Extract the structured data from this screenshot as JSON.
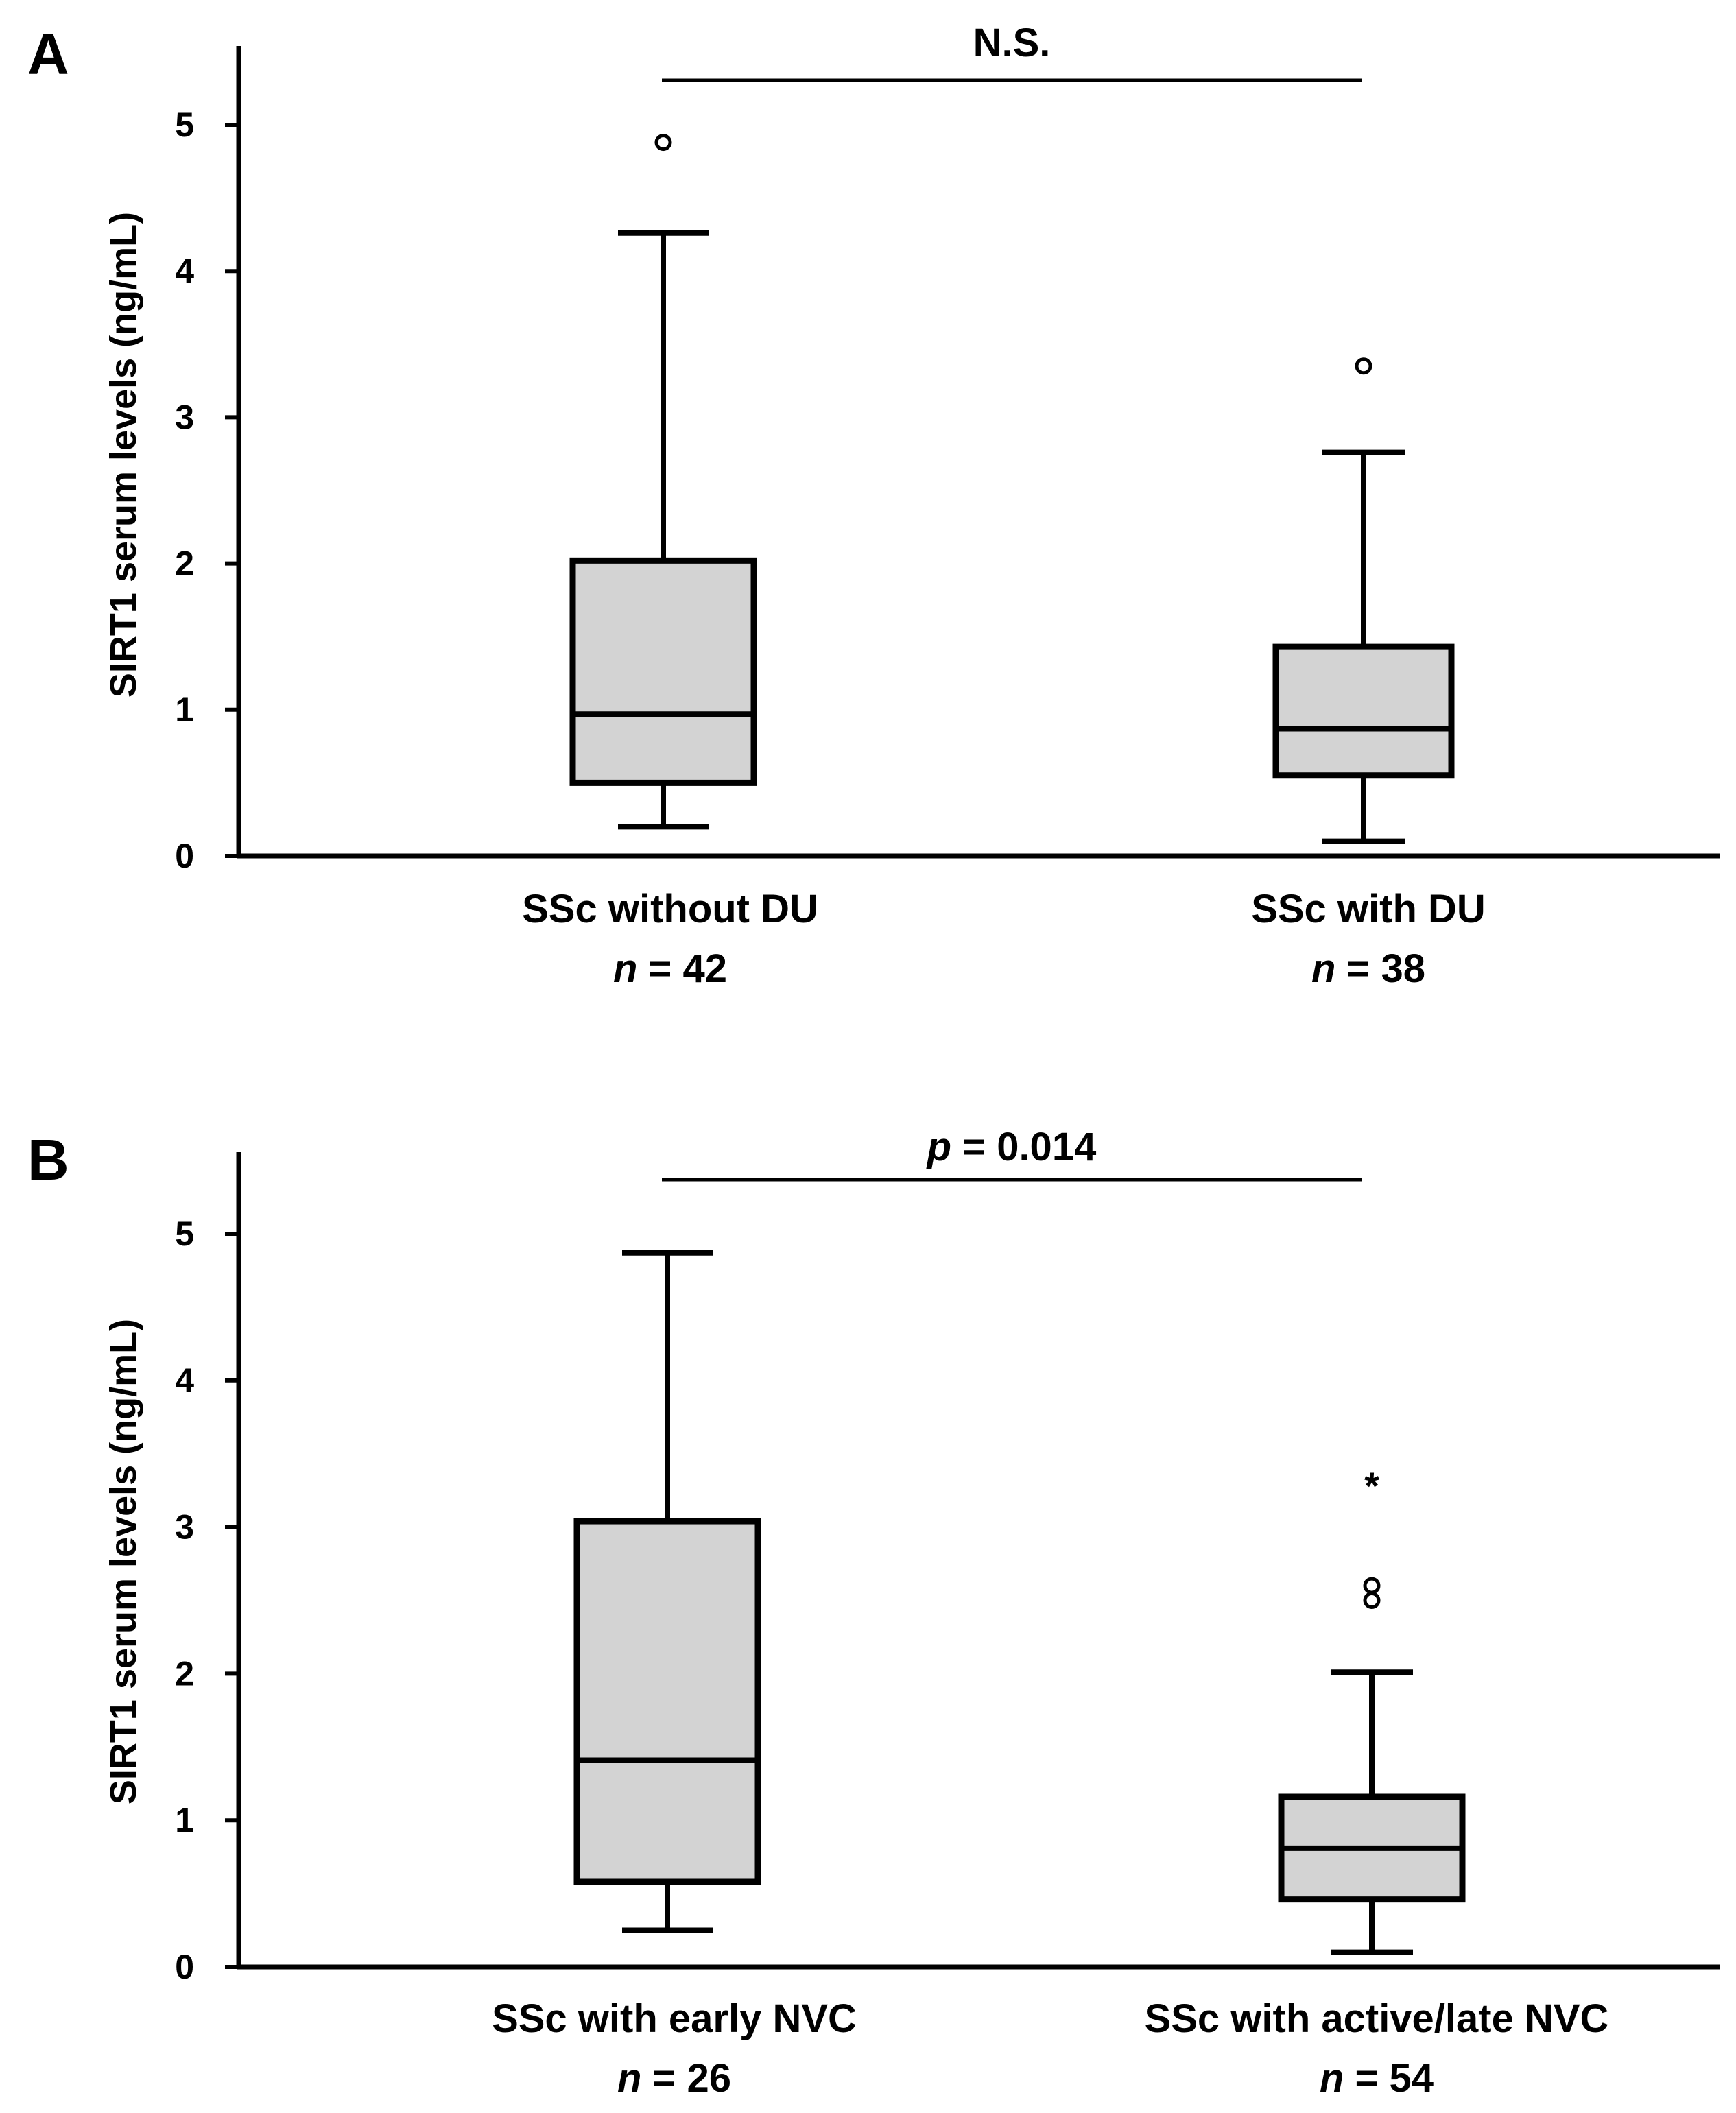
{
  "chart_data": [
    {
      "type": "boxplot",
      "panel": "A",
      "ylabel": "SIRT1 serum levels (ng/mL)",
      "ylim": [
        0,
        5.5
      ],
      "yticks": [
        0,
        1,
        2,
        3,
        4,
        5
      ],
      "significance": {
        "label": "N.S.",
        "prefix": "",
        "between": [
          0,
          1
        ]
      },
      "groups": [
        {
          "name": "SSc without DU",
          "n_label": "n",
          "n_value": "= 42",
          "min": 0.2,
          "q1": 0.5,
          "median": 0.97,
          "q3": 2.02,
          "max": 4.26,
          "outliers": [
            {
              "value": 4.88,
              "marker": "circle"
            }
          ]
        },
        {
          "name": "SSc with DU",
          "n_label": "n",
          "n_value": "= 38",
          "min": 0.1,
          "q1": 0.55,
          "median": 0.87,
          "q3": 1.43,
          "max": 2.76,
          "outliers": [
            {
              "value": 3.35,
              "marker": "circle"
            }
          ]
        }
      ]
    },
    {
      "type": "boxplot",
      "panel": "B",
      "ylabel": "SIRT1 serum levels (ng/mL)",
      "ylim": [
        0,
        5.5
      ],
      "yticks": [
        0,
        1,
        2,
        3,
        4,
        5
      ],
      "significance": {
        "label": "= 0.014",
        "prefix": "p",
        "between": [
          0,
          1
        ]
      },
      "groups": [
        {
          "name": "SSc with early NVC",
          "n_label": "n",
          "n_value": "= 26",
          "min": 0.25,
          "q1": 0.58,
          "median": 1.41,
          "q3": 3.04,
          "max": 4.87,
          "outliers": []
        },
        {
          "name": "SSc with active/late NVC",
          "n_label": "n",
          "n_value": "= 54",
          "min": 0.1,
          "q1": 0.46,
          "median": 0.81,
          "q3": 1.16,
          "max": 2.01,
          "outliers": [
            {
              "value": 3.33,
              "marker": "star"
            },
            {
              "value": 2.6,
              "marker": "circle"
            },
            {
              "value": 2.5,
              "marker": "circle"
            }
          ]
        }
      ]
    }
  ]
}
